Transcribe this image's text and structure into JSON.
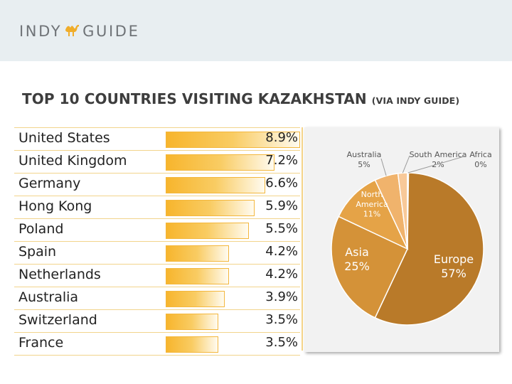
{
  "header": {
    "logo_left": "INDY",
    "logo_right": "GUIDE"
  },
  "title": {
    "main": "TOP 10 COUNTRIES VISITING KAZAKHSTAN",
    "sub": "(VIA INDY GUIDE)"
  },
  "countries": [
    {
      "name": "United States",
      "pct": "8.9%",
      "value": 8.9
    },
    {
      "name": "United Kingdom",
      "pct": "7.2%",
      "value": 7.2
    },
    {
      "name": "Germany",
      "pct": "6.6%",
      "value": 6.6
    },
    {
      "name": "Hong Kong",
      "pct": "5.9%",
      "value": 5.9
    },
    {
      "name": "Poland",
      "pct": "5.5%",
      "value": 5.5
    },
    {
      "name": "Spain",
      "pct": "4.2%",
      "value": 4.2
    },
    {
      "name": "Netherlands",
      "pct": "4.2%",
      "value": 4.2
    },
    {
      "name": "Australia",
      "pct": "3.9%",
      "value": 3.9
    },
    {
      "name": "Switzerland",
      "pct": "3.5%",
      "value": 3.5
    },
    {
      "name": "France",
      "pct": "3.5%",
      "value": 3.5
    }
  ],
  "chart_data": [
    {
      "type": "bar",
      "orientation": "horizontal",
      "categories": [
        "United States",
        "United Kingdom",
        "Germany",
        "Hong Kong",
        "Poland",
        "Spain",
        "Netherlands",
        "Australia",
        "Switzerland",
        "France"
      ],
      "values": [
        8.9,
        7.2,
        6.6,
        5.9,
        5.5,
        4.2,
        4.2,
        3.9,
        3.5,
        3.5
      ],
      "unit": "%",
      "xlim": [
        0,
        8.9
      ]
    },
    {
      "type": "pie",
      "labels": [
        "Europe",
        "Asia",
        "North America",
        "Australia",
        "South America",
        "Africa"
      ],
      "values": [
        57,
        25,
        11,
        5,
        2,
        0
      ],
      "display": [
        "57%",
        "25%",
        "11%",
        "5%",
        "2%",
        "0%"
      ],
      "colors": [
        "#b97a29",
        "#d49238",
        "#e5a347",
        "#f0b36c",
        "#f8c999",
        "#e1e1e1"
      ]
    }
  ]
}
